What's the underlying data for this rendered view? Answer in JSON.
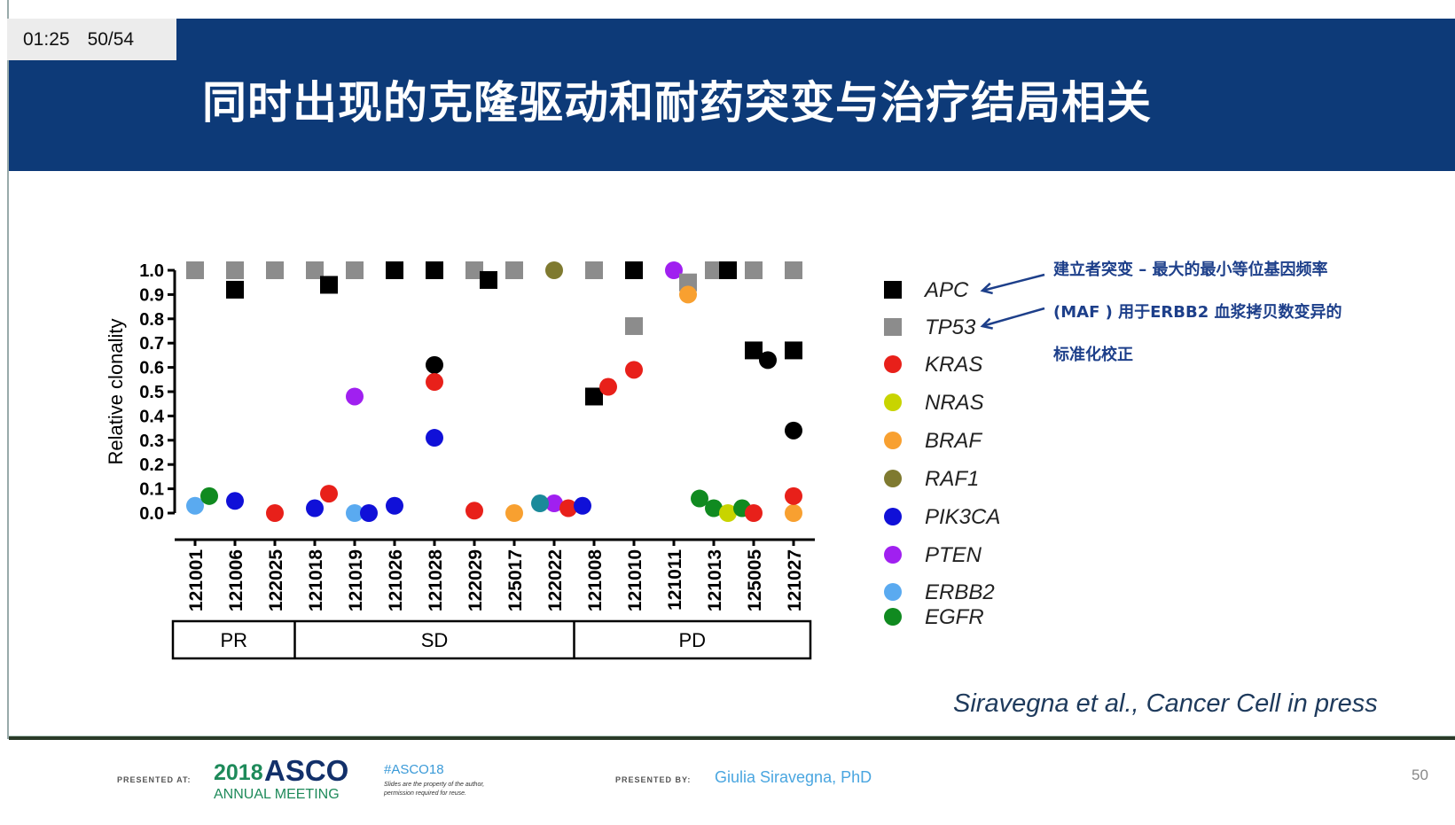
{
  "topbar": {
    "time": "01:25",
    "slide_counter": "50/54"
  },
  "title": "同时出现的克隆驱动和耐药突变与治疗结局相关",
  "annotation": {
    "lines": [
      "建立者突变 – 最大的最小等位基因频率",
      "(MAF ) 用于ERBB2 血浆拷贝数变异的",
      "标准化校正"
    ],
    "color": "#1d3f8a"
  },
  "citation": "Siravegna et al., Cancer Cell in press",
  "footer": {
    "presented_at": "PRESENTED AT:",
    "year": "2018",
    "asco": "ASCO",
    "meeting": "ANNUAL MEETING",
    "hashtag": "#ASCO18",
    "disclaimer_1": "Slides are the property of the author,",
    "disclaimer_2": "permission required for reuse.",
    "presented_by": "PRESENTED BY:",
    "presenter": "Giulia Siravegna, PhD",
    "page": "50"
  },
  "chart_data": {
    "type": "scatter",
    "ylabel": "Relative clonality",
    "ylim": [
      0,
      1.0
    ],
    "yticks": [
      "0.0",
      "0.1",
      "0.2",
      "0.3",
      "0.4",
      "0.5",
      "0.6",
      "0.7",
      "0.8",
      "0.9",
      "1.0"
    ],
    "categories": [
      "121001",
      "121006",
      "122025",
      "121018",
      "121019",
      "121026",
      "121028",
      "122029",
      "125017",
      "122022",
      "121008",
      "121010",
      "121011",
      "121013",
      "125005",
      "121027"
    ],
    "groups": [
      {
        "label": "PR",
        "from": 0,
        "to": 2
      },
      {
        "label": "SD",
        "from": 3,
        "to": 9
      },
      {
        "label": "PD",
        "from": 10,
        "to": 15
      }
    ],
    "legend_placement": "right",
    "series": [
      {
        "name": "APC",
        "color": "#000000",
        "shape": "square"
      },
      {
        "name": "TP53",
        "color": "#8c8c8c",
        "shape": "square"
      },
      {
        "name": "KRAS",
        "color": "#e8201a",
        "shape": "circle"
      },
      {
        "name": "NRAS",
        "color": "#c8d400",
        "shape": "circle"
      },
      {
        "name": "BRAF",
        "color": "#f8a030",
        "shape": "circle"
      },
      {
        "name": "RAF1",
        "color": "#7f7a30",
        "shape": "circle"
      },
      {
        "name": "PIK3CA",
        "color": "#1010d8",
        "shape": "circle"
      },
      {
        "name": "PTEN",
        "color": "#a020f0",
        "shape": "circle"
      },
      {
        "name": "ERBB2",
        "color": "#5aaaf0",
        "shape": "circle"
      },
      {
        "name": "EGFR",
        "color": "#108a20",
        "shape": "circle"
      },
      {
        "name": "",
        "color": "#000000",
        "shape": "circle"
      },
      {
        "name": "",
        "color": "#1a8a9a",
        "shape": "circle"
      }
    ],
    "points": [
      {
        "c": 0,
        "s": 1,
        "y": 1.0
      },
      {
        "c": 0,
        "s": 8,
        "y": 0.03
      },
      {
        "c": 0,
        "s": 9,
        "y": 0.07
      },
      {
        "c": 1,
        "s": 1,
        "y": 1.0
      },
      {
        "c": 1,
        "s": 0,
        "y": 0.92
      },
      {
        "c": 1,
        "s": 6,
        "y": 0.05
      },
      {
        "c": 2,
        "s": 1,
        "y": 1.0
      },
      {
        "c": 2,
        "s": 2,
        "y": 0.0
      },
      {
        "c": 3,
        "s": 1,
        "y": 1.0
      },
      {
        "c": 3,
        "s": 0,
        "y": 0.94
      },
      {
        "c": 3,
        "s": 6,
        "y": 0.02
      },
      {
        "c": 3,
        "s": 2,
        "y": 0.08
      },
      {
        "c": 4,
        "s": 1,
        "y": 1.0
      },
      {
        "c": 4,
        "s": 7,
        "y": 0.48
      },
      {
        "c": 4,
        "s": 8,
        "y": 0.0
      },
      {
        "c": 4,
        "s": 6,
        "y": 0.0
      },
      {
        "c": 5,
        "s": 0,
        "y": 1.0
      },
      {
        "c": 5,
        "s": 6,
        "y": 0.03
      },
      {
        "c": 6,
        "s": 0,
        "y": 1.0
      },
      {
        "c": 6,
        "s": 10,
        "y": 0.61
      },
      {
        "c": 6,
        "s": 2,
        "y": 0.54
      },
      {
        "c": 6,
        "s": 6,
        "y": 0.31
      },
      {
        "c": 7,
        "s": 1,
        "y": 1.0
      },
      {
        "c": 7,
        "s": 0,
        "y": 0.96
      },
      {
        "c": 7,
        "s": 2,
        "y": 0.01
      },
      {
        "c": 8,
        "s": 1,
        "y": 1.0
      },
      {
        "c": 8,
        "s": 4,
        "y": 0.0
      },
      {
        "c": 9,
        "s": 5,
        "y": 1.0
      },
      {
        "c": 9,
        "s": 7,
        "y": 0.04
      },
      {
        "c": 9,
        "s": 2,
        "y": 0.02
      },
      {
        "c": 9,
        "s": 11,
        "y": 0.04
      },
      {
        "c": 9,
        "s": 6,
        "y": 0.03
      },
      {
        "c": 10,
        "s": 1,
        "y": 1.0
      },
      {
        "c": 10,
        "s": 0,
        "y": 0.48
      },
      {
        "c": 10,
        "s": 2,
        "y": 0.52
      },
      {
        "c": 11,
        "s": 0,
        "y": 1.0
      },
      {
        "c": 11,
        "s": 1,
        "y": 0.77
      },
      {
        "c": 11,
        "s": 2,
        "y": 0.59
      },
      {
        "c": 12,
        "s": 7,
        "y": 1.0
      },
      {
        "c": 12,
        "s": 1,
        "y": 0.95
      },
      {
        "c": 12,
        "s": 4,
        "y": 0.9
      },
      {
        "c": 13,
        "s": 1,
        "y": 1.0
      },
      {
        "c": 13,
        "s": 0,
        "y": 1.0
      },
      {
        "c": 13,
        "s": 9,
        "y": 0.02
      },
      {
        "c": 13,
        "s": 3,
        "y": 0.0
      },
      {
        "c": 13,
        "s": 9,
        "y": 0.06
      },
      {
        "c": 13,
        "s": 9,
        "y": 0.02
      },
      {
        "c": 14,
        "s": 1,
        "y": 1.0
      },
      {
        "c": 14,
        "s": 0,
        "y": 0.67
      },
      {
        "c": 14,
        "s": 10,
        "y": 0.63
      },
      {
        "c": 14,
        "s": 2,
        "y": 0.0
      },
      {
        "c": 15,
        "s": 1,
        "y": 1.0
      },
      {
        "c": 15,
        "s": 0,
        "y": 0.67
      },
      {
        "c": 15,
        "s": 10,
        "y": 0.34
      },
      {
        "c": 15,
        "s": 4,
        "y": 0.0
      },
      {
        "c": 15,
        "s": 2,
        "y": 0.07
      }
    ]
  }
}
